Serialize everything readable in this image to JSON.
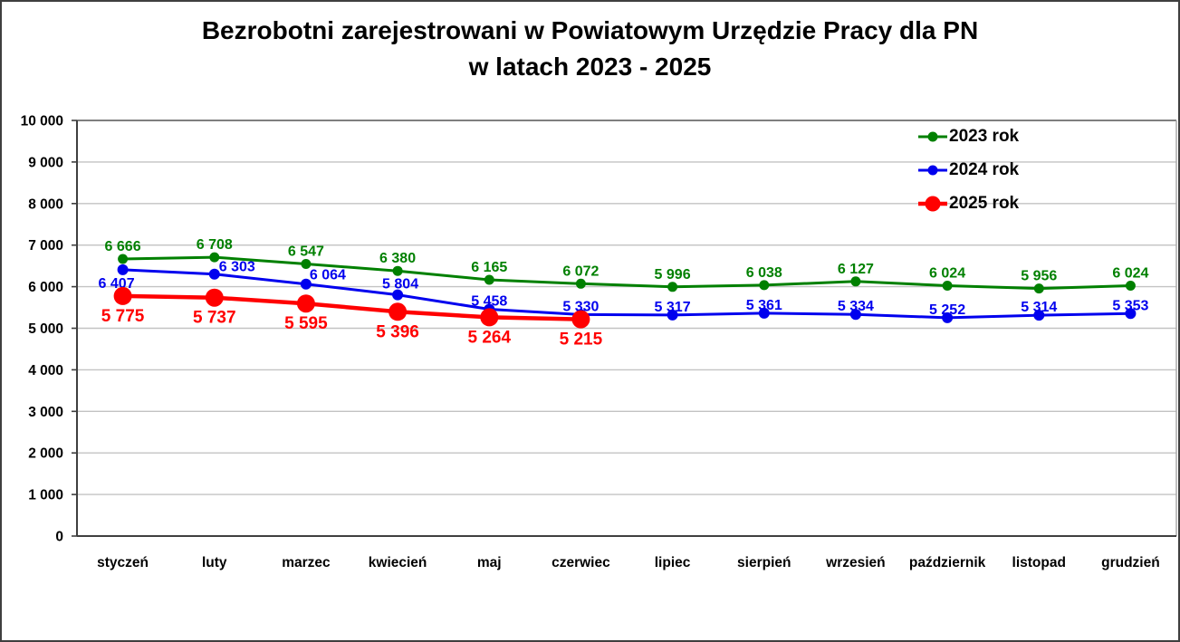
{
  "title": {
    "line1": "Bezrobotni zarejestrowani w Powiatowym Urzędzie Pracy dla PN",
    "line2": "w latach 2023 - 2025"
  },
  "chart_data": {
    "type": "line",
    "categories": [
      "styczeń",
      "luty",
      "marzec",
      "kwiecień",
      "maj",
      "czerwiec",
      "lipiec",
      "sierpień",
      "wrzesień",
      "październik",
      "listopad",
      "grudzień"
    ],
    "series": [
      {
        "name": "2023 rok",
        "color": "#008000",
        "values": [
          6666,
          6708,
          6547,
          6380,
          6165,
          6072,
          5996,
          6038,
          6127,
          6024,
          5956,
          6024
        ]
      },
      {
        "name": "2024 rok",
        "color": "#0000ee",
        "values": [
          6407,
          6303,
          6064,
          5804,
          5458,
          5330,
          5317,
          5361,
          5334,
          5252,
          5314,
          5353
        ]
      },
      {
        "name": "2025 rok",
        "color": "#ff0000",
        "values": [
          5775,
          5737,
          5595,
          5396,
          5264,
          5215
        ]
      }
    ],
    "y_axis": {
      "min": 0,
      "max": 10000,
      "step": 1000,
      "tick_labels": [
        "0",
        "1 000",
        "2 000",
        "3 000",
        "4 000",
        "5 000",
        "6 000",
        "7 000",
        "8 000",
        "9 000",
        "10 000"
      ]
    },
    "legend_position": "top-right",
    "grid": true,
    "data_labels": true
  }
}
